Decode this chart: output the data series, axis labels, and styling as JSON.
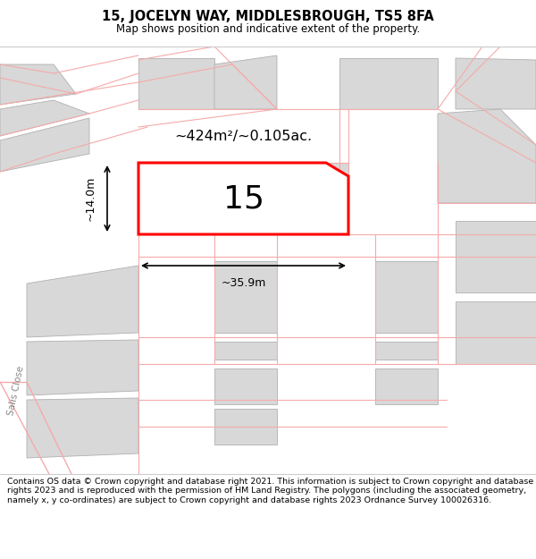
{
  "title_line1": "15, JOCELYN WAY, MIDDLESBROUGH, TS5 8FA",
  "title_line2": "Map shows position and indicative extent of the property.",
  "footer_text": "Contains OS data © Crown copyright and database right 2021. This information is subject to Crown copyright and database rights 2023 and is reproduced with the permission of HM Land Registry. The polygons (including the associated geometry, namely x, y co-ordinates) are subject to Crown copyright and database rights 2023 Ordnance Survey 100026316.",
  "property_label": "15",
  "area_text": "~424m²/~0.105ac.",
  "width_label": "~35.9m",
  "height_label": "~14.0m",
  "road_color": "#f5aaaa",
  "building_color": "#d8d8d8",
  "building_edge": "#b0b0b0",
  "highlight_color": "#ff0000",
  "map_bg": "#ffffff",
  "title_bg": "#ffffff",
  "footer_bg": "#ffffff"
}
